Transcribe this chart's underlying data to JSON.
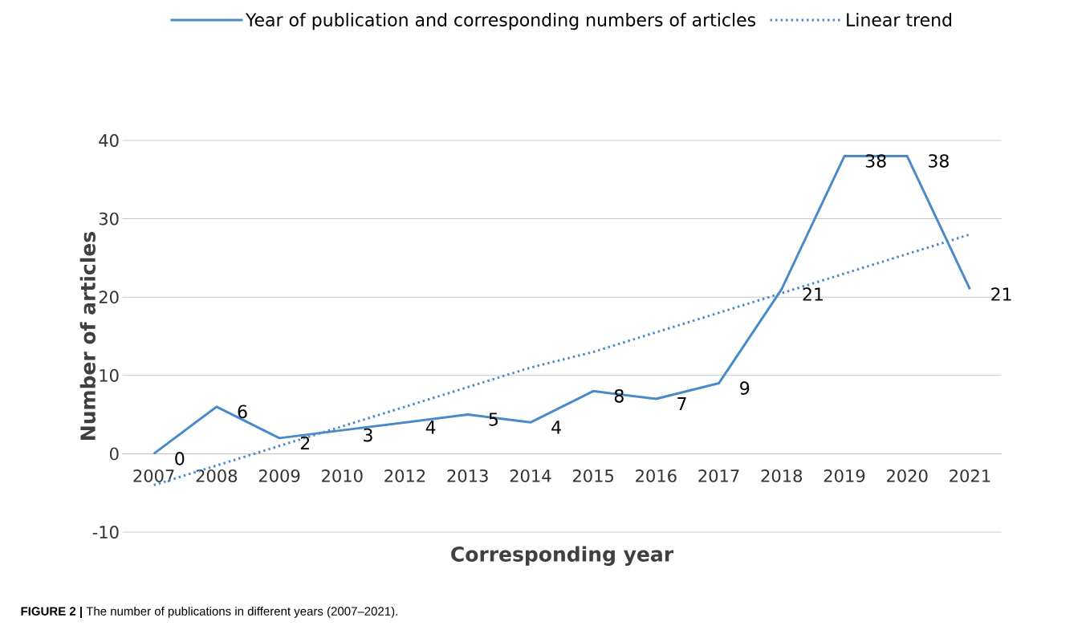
{
  "chart_data": {
    "type": "line",
    "xlabel": "Corresponding year",
    "ylabel": "Number of articles",
    "categories": [
      "2007",
      "2008",
      "2009",
      "2010",
      "2012",
      "2013",
      "2014",
      "2015",
      "2016",
      "2017",
      "2018",
      "2019",
      "2020",
      "2021"
    ],
    "series": [
      {
        "name": "Year of publication and corresponding numbers of articles",
        "color": "#4a8ac9",
        "line_style": "solid",
        "values": [
          0,
          6,
          2,
          3,
          4,
          5,
          4,
          8,
          7,
          9,
          21,
          38,
          38,
          21
        ],
        "value_labels": [
          "0",
          "6",
          "2",
          "3",
          "4",
          "5",
          "4",
          "8",
          "7",
          "9",
          "21",
          "38",
          "38",
          "21"
        ]
      },
      {
        "name": "Linear trend",
        "color": "#4a8ac9",
        "line_style": "dotted",
        "values": [
          -4,
          -1.5,
          1,
          3.5,
          6,
          8.5,
          11,
          13,
          15.5,
          18,
          20.5,
          23,
          25.5,
          28
        ]
      }
    ],
    "ylim": [
      -10,
      40
    ],
    "yticks": [
      -10,
      0,
      10,
      20,
      30,
      40
    ],
    "grid": "y",
    "legend": "top",
    "annotations": [
      "**FIGURE 2 |** The number of publications in different years (2007–2021)."
    ]
  }
}
